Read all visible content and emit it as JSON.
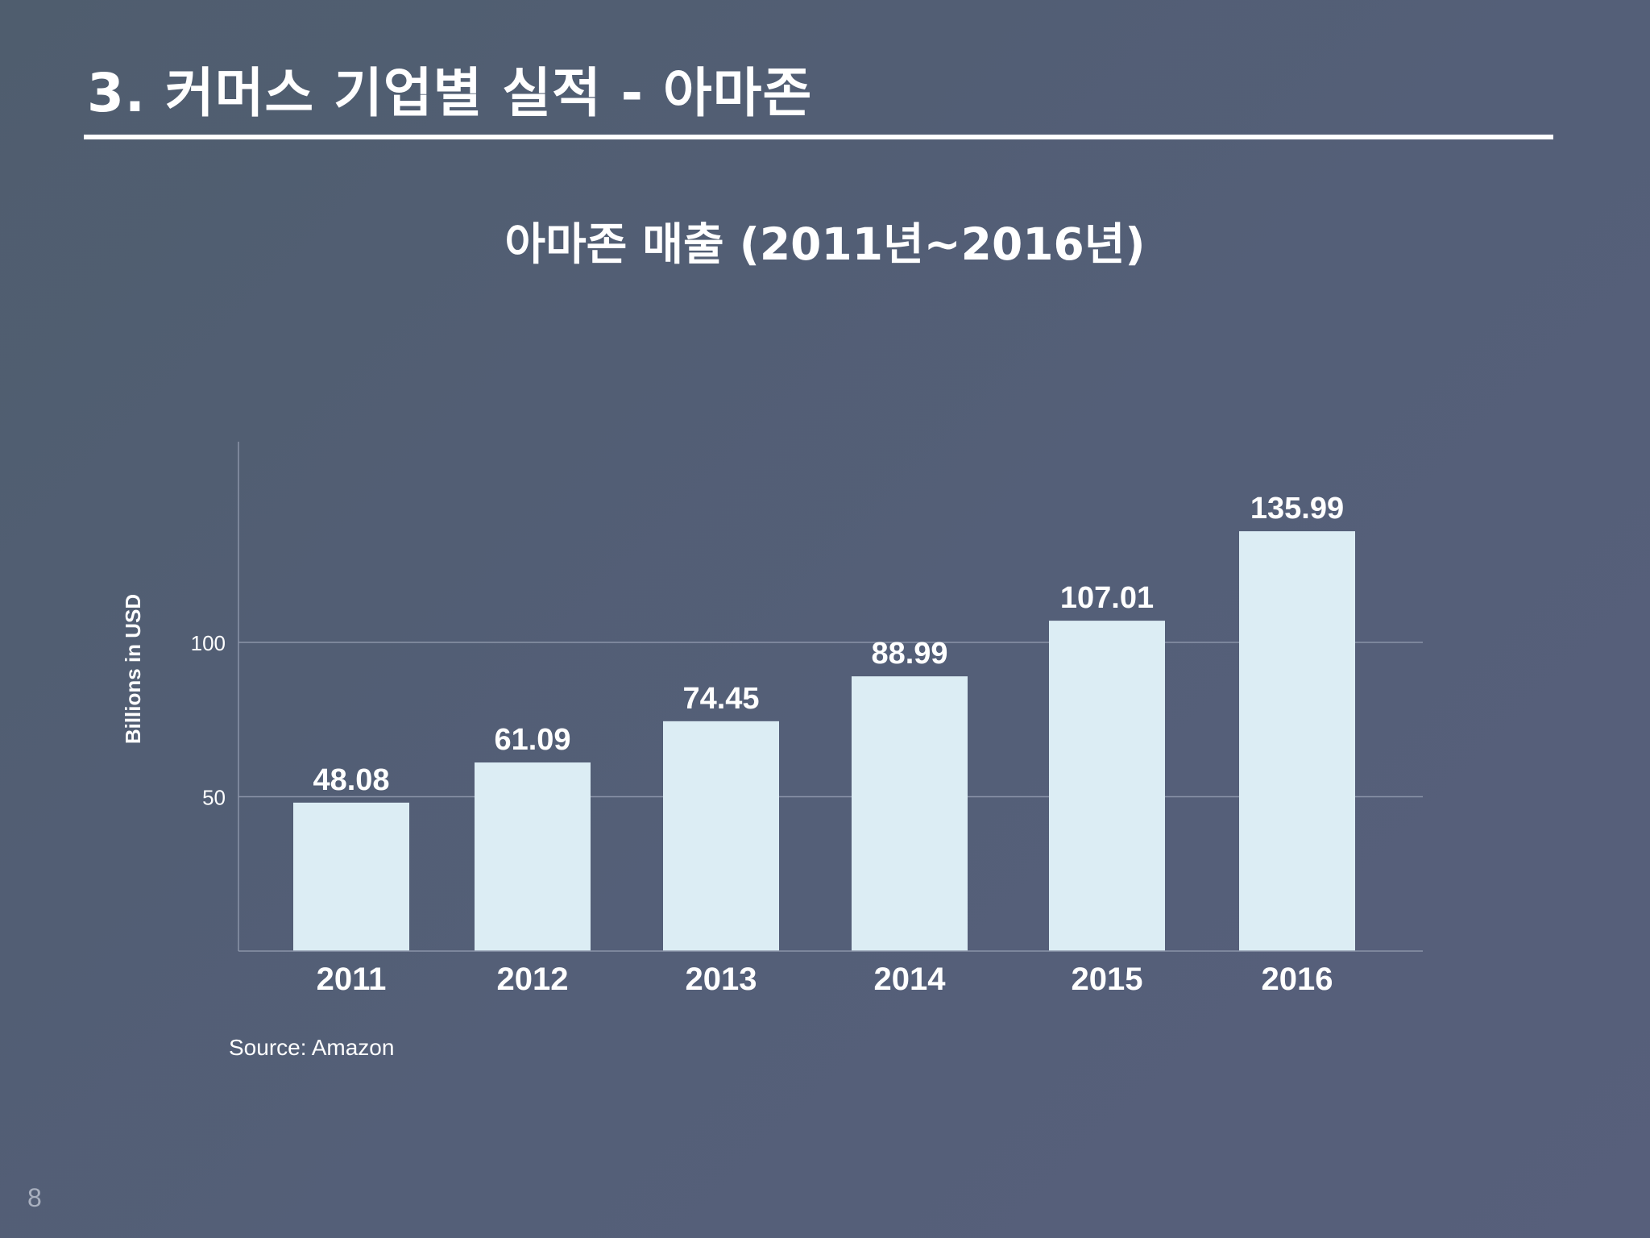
{
  "slide": {
    "title": "3. 커머스 기업별 실적 - 아마존",
    "page_number": "8",
    "source": "Source: Amazon"
  },
  "colors": {
    "background": "#545f78",
    "bar_fill": "#dcedf4",
    "text": "#ffffff",
    "grid": "#8a93a8"
  },
  "chart_data": {
    "type": "bar",
    "title": "아마존 매출 (2011년~2016년)",
    "categories": [
      "2011",
      "2012",
      "2013",
      "2014",
      "2015",
      "2016"
    ],
    "values": [
      48.08,
      61.09,
      74.45,
      88.99,
      107.01,
      135.99
    ],
    "data_labels": [
      "48.08",
      "61.09",
      "74.45",
      "88.99",
      "107.01",
      "135.99"
    ],
    "xlabel": "",
    "ylabel": "Billions in USD",
    "yticks": [
      50,
      100
    ],
    "ylim": [
      0,
      165
    ],
    "grid": true,
    "legend": "none"
  }
}
